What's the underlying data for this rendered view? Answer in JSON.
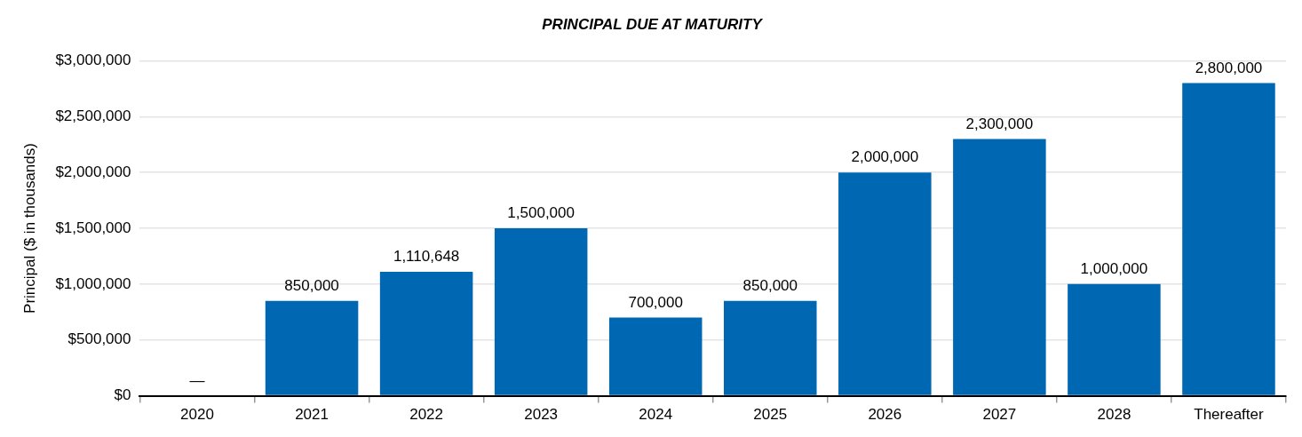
{
  "chart_data": {
    "type": "bar",
    "title": "PRINCIPAL DUE AT MATURITY",
    "ylabel": "Principal ($ in thousands)",
    "categories": [
      "2020",
      "2021",
      "2022",
      "2023",
      "2024",
      "2025",
      "2026",
      "2027",
      "2028",
      "Thereafter"
    ],
    "values": [
      0,
      850000,
      1110648,
      1500000,
      700000,
      850000,
      2000000,
      2300000,
      1000000,
      2800000
    ],
    "value_labels": [
      "—",
      "850,000",
      "1,110,648",
      "1,500,000",
      "700,000",
      "850,000",
      "2,000,000",
      "2,300,000",
      "1,000,000",
      "2,800,000"
    ],
    "color": "#0068b3",
    "ylim": [
      0,
      3000000
    ],
    "yticks": [
      {
        "value": 0,
        "label": "$0"
      },
      {
        "value": 500000,
        "label": "$500,000"
      },
      {
        "value": 1000000,
        "label": "$1,000,000"
      },
      {
        "value": 1500000,
        "label": "$1,500,000"
      },
      {
        "value": 2000000,
        "label": "$2,000,000"
      },
      {
        "value": 2500000,
        "label": "$2,500,000"
      },
      {
        "value": 3000000,
        "label": "$3,000,000"
      }
    ],
    "grid": "y"
  }
}
